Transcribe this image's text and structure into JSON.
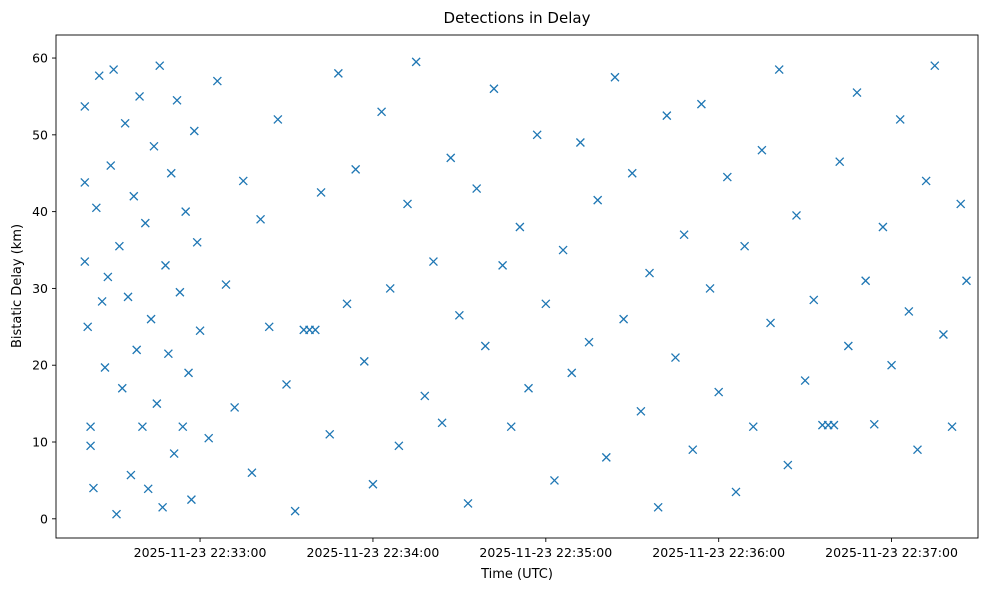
{
  "chart_data": {
    "type": "scatter",
    "title": "Detections in Delay",
    "xlabel": "Time (UTC)",
    "ylabel": "Bistatic Delay (km)",
    "x_is_time": true,
    "xlim": [
      "2025-11-23 22:32:10",
      "2025-11-23 22:37:30"
    ],
    "ylim": [
      -2.5,
      63
    ],
    "x_ticks": [
      "2025-11-23 22:33:00",
      "2025-11-23 22:34:00",
      "2025-11-23 22:35:00",
      "2025-11-23 22:36:00",
      "2025-11-23 22:37:00"
    ],
    "y_ticks": [
      "0",
      "10",
      "20",
      "30",
      "40",
      "50",
      "60"
    ],
    "grid": false,
    "legend": "none",
    "marker": "x",
    "color": "#1f77b4",
    "series": [
      {
        "points": [
          [
            "2025-11-23 22:32:20",
            53.7
          ],
          [
            "2025-11-23 22:32:20",
            43.8
          ],
          [
            "2025-11-23 22:32:20",
            33.5
          ],
          [
            "2025-11-23 22:32:21",
            25.0
          ],
          [
            "2025-11-23 22:32:22",
            9.5
          ],
          [
            "2025-11-23 22:32:22",
            12.0
          ],
          [
            "2025-11-23 22:32:23",
            4.0
          ],
          [
            "2025-11-23 22:32:24",
            40.5
          ],
          [
            "2025-11-23 22:32:25",
            57.7
          ],
          [
            "2025-11-23 22:32:26",
            28.3
          ],
          [
            "2025-11-23 22:32:27",
            19.7
          ],
          [
            "2025-11-23 22:32:28",
            31.5
          ],
          [
            "2025-11-23 22:32:29",
            46.0
          ],
          [
            "2025-11-23 22:32:30",
            58.5
          ],
          [
            "2025-11-23 22:32:31",
            0.6
          ],
          [
            "2025-11-23 22:32:32",
            35.5
          ],
          [
            "2025-11-23 22:32:33",
            17.0
          ],
          [
            "2025-11-23 22:32:34",
            51.5
          ],
          [
            "2025-11-23 22:32:35",
            28.9
          ],
          [
            "2025-11-23 22:32:36",
            5.7
          ],
          [
            "2025-11-23 22:32:37",
            42.0
          ],
          [
            "2025-11-23 22:32:38",
            22.0
          ],
          [
            "2025-11-23 22:32:39",
            55.0
          ],
          [
            "2025-11-23 22:32:40",
            12.0
          ],
          [
            "2025-11-23 22:32:41",
            38.5
          ],
          [
            "2025-11-23 22:32:42",
            3.9
          ],
          [
            "2025-11-23 22:32:43",
            26.0
          ],
          [
            "2025-11-23 22:32:44",
            48.5
          ],
          [
            "2025-11-23 22:32:45",
            15.0
          ],
          [
            "2025-11-23 22:32:46",
            59.0
          ],
          [
            "2025-11-23 22:32:47",
            1.5
          ],
          [
            "2025-11-23 22:32:48",
            33.0
          ],
          [
            "2025-11-23 22:32:49",
            21.5
          ],
          [
            "2025-11-23 22:32:50",
            45.0
          ],
          [
            "2025-11-23 22:32:51",
            8.5
          ],
          [
            "2025-11-23 22:32:52",
            54.5
          ],
          [
            "2025-11-23 22:32:53",
            29.5
          ],
          [
            "2025-11-23 22:32:54",
            12.0
          ],
          [
            "2025-11-23 22:32:55",
            40.0
          ],
          [
            "2025-11-23 22:32:56",
            19.0
          ],
          [
            "2025-11-23 22:32:57",
            2.5
          ],
          [
            "2025-11-23 22:32:58",
            50.5
          ],
          [
            "2025-11-23 22:32:59",
            36.0
          ],
          [
            "2025-11-23 22:33:00",
            24.5
          ],
          [
            "2025-11-23 22:33:03",
            10.5
          ],
          [
            "2025-11-23 22:33:06",
            57.0
          ],
          [
            "2025-11-23 22:33:09",
            30.5
          ],
          [
            "2025-11-23 22:33:12",
            14.5
          ],
          [
            "2025-11-23 22:33:15",
            44.0
          ],
          [
            "2025-11-23 22:33:18",
            6.0
          ],
          [
            "2025-11-23 22:33:21",
            39.0
          ],
          [
            "2025-11-23 22:33:24",
            25.0
          ],
          [
            "2025-11-23 22:33:27",
            52.0
          ],
          [
            "2025-11-23 22:33:30",
            17.5
          ],
          [
            "2025-11-23 22:33:33",
            1.0
          ],
          [
            "2025-11-23 22:33:36",
            24.6
          ],
          [
            "2025-11-23 22:33:38",
            24.6
          ],
          [
            "2025-11-23 22:33:40",
            24.6
          ],
          [
            "2025-11-23 22:33:42",
            42.5
          ],
          [
            "2025-11-23 22:33:45",
            11.0
          ],
          [
            "2025-11-23 22:33:48",
            58.0
          ],
          [
            "2025-11-23 22:33:51",
            28.0
          ],
          [
            "2025-11-23 22:33:54",
            45.5
          ],
          [
            "2025-11-23 22:33:57",
            20.5
          ],
          [
            "2025-11-23 22:34:00",
            4.5
          ],
          [
            "2025-11-23 22:34:03",
            53.0
          ],
          [
            "2025-11-23 22:34:06",
            30.0
          ],
          [
            "2025-11-23 22:34:09",
            9.5
          ],
          [
            "2025-11-23 22:34:12",
            41.0
          ],
          [
            "2025-11-23 22:34:15",
            59.5
          ],
          [
            "2025-11-23 22:34:18",
            16.0
          ],
          [
            "2025-11-23 22:34:21",
            33.5
          ],
          [
            "2025-11-23 22:34:24",
            12.5
          ],
          [
            "2025-11-23 22:34:27",
            47.0
          ],
          [
            "2025-11-23 22:34:30",
            26.5
          ],
          [
            "2025-11-23 22:34:33",
            2.0
          ],
          [
            "2025-11-23 22:34:36",
            43.0
          ],
          [
            "2025-11-23 22:34:39",
            22.5
          ],
          [
            "2025-11-23 22:34:42",
            56.0
          ],
          [
            "2025-11-23 22:34:45",
            33.0
          ],
          [
            "2025-11-23 22:34:48",
            12.0
          ],
          [
            "2025-11-23 22:34:51",
            38.0
          ],
          [
            "2025-11-23 22:34:54",
            17.0
          ],
          [
            "2025-11-23 22:34:57",
            50.0
          ],
          [
            "2025-11-23 22:35:00",
            28.0
          ],
          [
            "2025-11-23 22:35:03",
            5.0
          ],
          [
            "2025-11-23 22:35:06",
            35.0
          ],
          [
            "2025-11-23 22:35:09",
            19.0
          ],
          [
            "2025-11-23 22:35:12",
            49.0
          ],
          [
            "2025-11-23 22:35:15",
            23.0
          ],
          [
            "2025-11-23 22:35:18",
            41.5
          ],
          [
            "2025-11-23 22:35:21",
            8.0
          ],
          [
            "2025-11-23 22:35:24",
            57.5
          ],
          [
            "2025-11-23 22:35:27",
            26.0
          ],
          [
            "2025-11-23 22:35:30",
            45.0
          ],
          [
            "2025-11-23 22:35:33",
            14.0
          ],
          [
            "2025-11-23 22:35:36",
            32.0
          ],
          [
            "2025-11-23 22:35:39",
            1.5
          ],
          [
            "2025-11-23 22:35:42",
            52.5
          ],
          [
            "2025-11-23 22:35:45",
            21.0
          ],
          [
            "2025-11-23 22:35:48",
            37.0
          ],
          [
            "2025-11-23 22:35:51",
            9.0
          ],
          [
            "2025-11-23 22:35:54",
            54.0
          ],
          [
            "2025-11-23 22:35:57",
            30.0
          ],
          [
            "2025-11-23 22:36:00",
            16.5
          ],
          [
            "2025-11-23 22:36:03",
            44.5
          ],
          [
            "2025-11-23 22:36:06",
            3.5
          ],
          [
            "2025-11-23 22:36:09",
            35.5
          ],
          [
            "2025-11-23 22:36:12",
            12.0
          ],
          [
            "2025-11-23 22:36:15",
            48.0
          ],
          [
            "2025-11-23 22:36:18",
            25.5
          ],
          [
            "2025-11-23 22:36:21",
            58.5
          ],
          [
            "2025-11-23 22:36:24",
            7.0
          ],
          [
            "2025-11-23 22:36:27",
            39.5
          ],
          [
            "2025-11-23 22:36:30",
            18.0
          ],
          [
            "2025-11-23 22:36:33",
            28.5
          ],
          [
            "2025-11-23 22:36:36",
            12.2
          ],
          [
            "2025-11-23 22:36:38",
            12.2
          ],
          [
            "2025-11-23 22:36:40",
            12.2
          ],
          [
            "2025-11-23 22:36:42",
            46.5
          ],
          [
            "2025-11-23 22:36:45",
            22.5
          ],
          [
            "2025-11-23 22:36:48",
            55.5
          ],
          [
            "2025-11-23 22:36:51",
            31.0
          ],
          [
            "2025-11-23 22:36:54",
            12.3
          ],
          [
            "2025-11-23 22:36:57",
            38.0
          ],
          [
            "2025-11-23 22:37:00",
            20.0
          ],
          [
            "2025-11-23 22:37:03",
            52.0
          ],
          [
            "2025-11-23 22:37:06",
            27.0
          ],
          [
            "2025-11-23 22:37:09",
            9.0
          ],
          [
            "2025-11-23 22:37:12",
            44.0
          ],
          [
            "2025-11-23 22:37:15",
            59.0
          ],
          [
            "2025-11-23 22:37:18",
            24.0
          ],
          [
            "2025-11-23 22:37:21",
            12.0
          ],
          [
            "2025-11-23 22:37:24",
            41.0
          ],
          [
            "2025-11-23 22:37:26",
            31.0
          ]
        ]
      }
    ]
  }
}
